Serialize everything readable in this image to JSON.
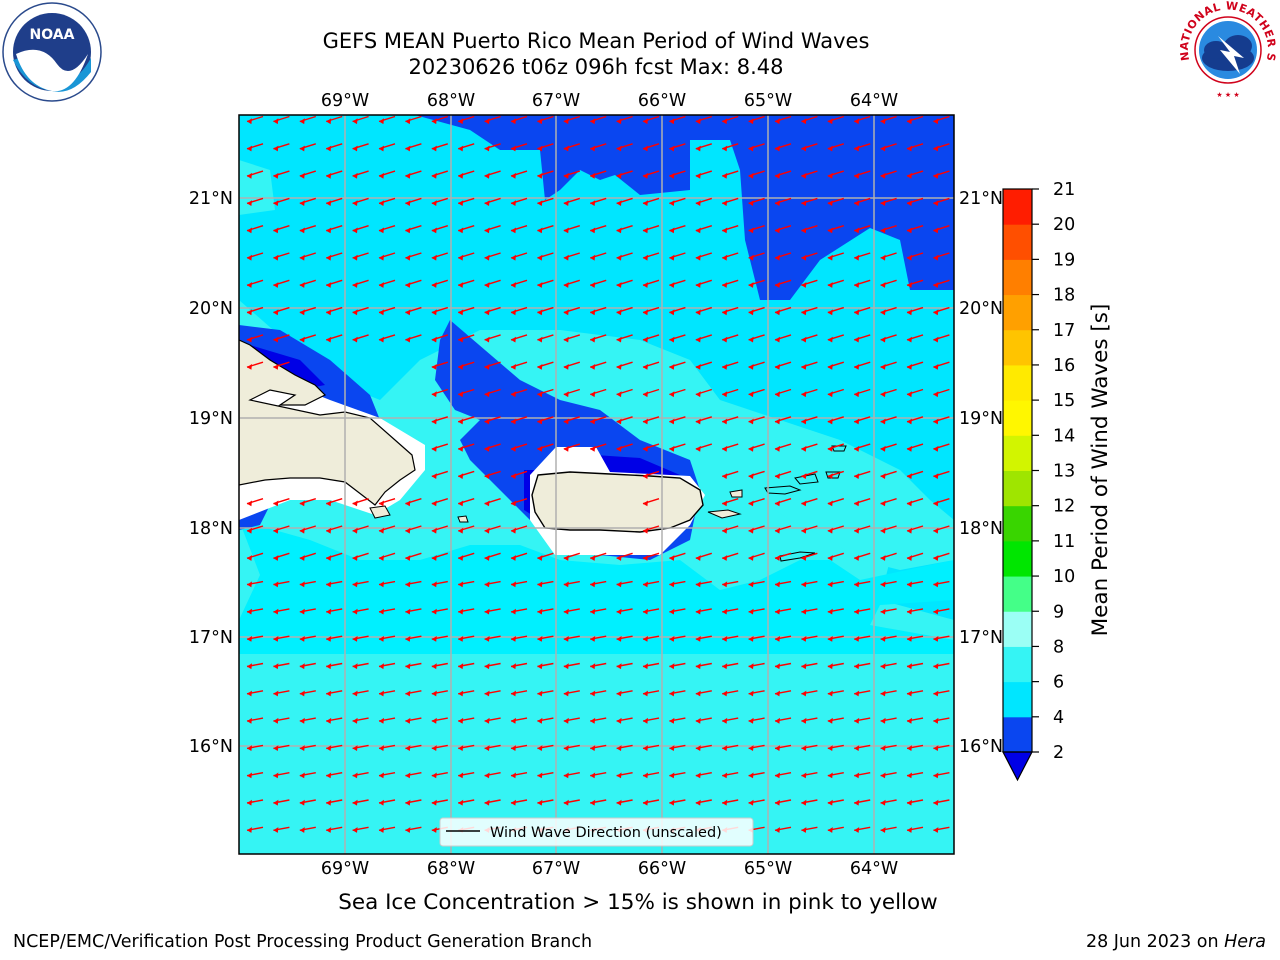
{
  "title": {
    "line1": "GEFS MEAN Puerto Rico Mean Period of Wind Waves",
    "line2": "20230626 t06z 096h fcst   Max: 8.48"
  },
  "map": {
    "lon_labels": [
      "69°W",
      "68°W",
      "67°W",
      "66°W",
      "65°W",
      "64°W"
    ],
    "lat_labels": [
      "21°N",
      "20°N",
      "19°N",
      "18°N",
      "17°N",
      "16°N"
    ],
    "land_labels": [],
    "legend_label": "Wind Wave Direction (unscaled)",
    "vector_color": "#ff0000",
    "land_color": "#efedda",
    "grid_color": "#b0b0b0"
  },
  "colorbar": {
    "label": "Mean Period of Wind Waves [s]",
    "ticks": [
      "2",
      "4",
      "6",
      "8",
      "9",
      "10",
      "11",
      "12",
      "13",
      "14",
      "15",
      "16",
      "17",
      "18",
      "19",
      "20",
      "21"
    ],
    "colors": [
      "#0a46f0",
      "#00e6ff",
      "#35f4f4",
      "#9bfff5",
      "#44ff88",
      "#00e600",
      "#39d500",
      "#9fe500",
      "#d2f500",
      "#fff700",
      "#ffea00",
      "#ffc400",
      "#ffa000",
      "#ff7f00",
      "#ff4f00",
      "#ff1d00"
    ],
    "extend_color": "#0000e6"
  },
  "seaice_note": "Sea Ice Concentration > 15% is shown in pink to yellow",
  "footer": {
    "left": "NCEP/EMC/Verification Post Processing Product Generation Branch",
    "right_date": "28 Jun 2023 on ",
    "right_host": "Hera"
  },
  "logos": {
    "left": "NOAA",
    "right_ring": "NATIONAL WEATHER SERVICE"
  }
}
